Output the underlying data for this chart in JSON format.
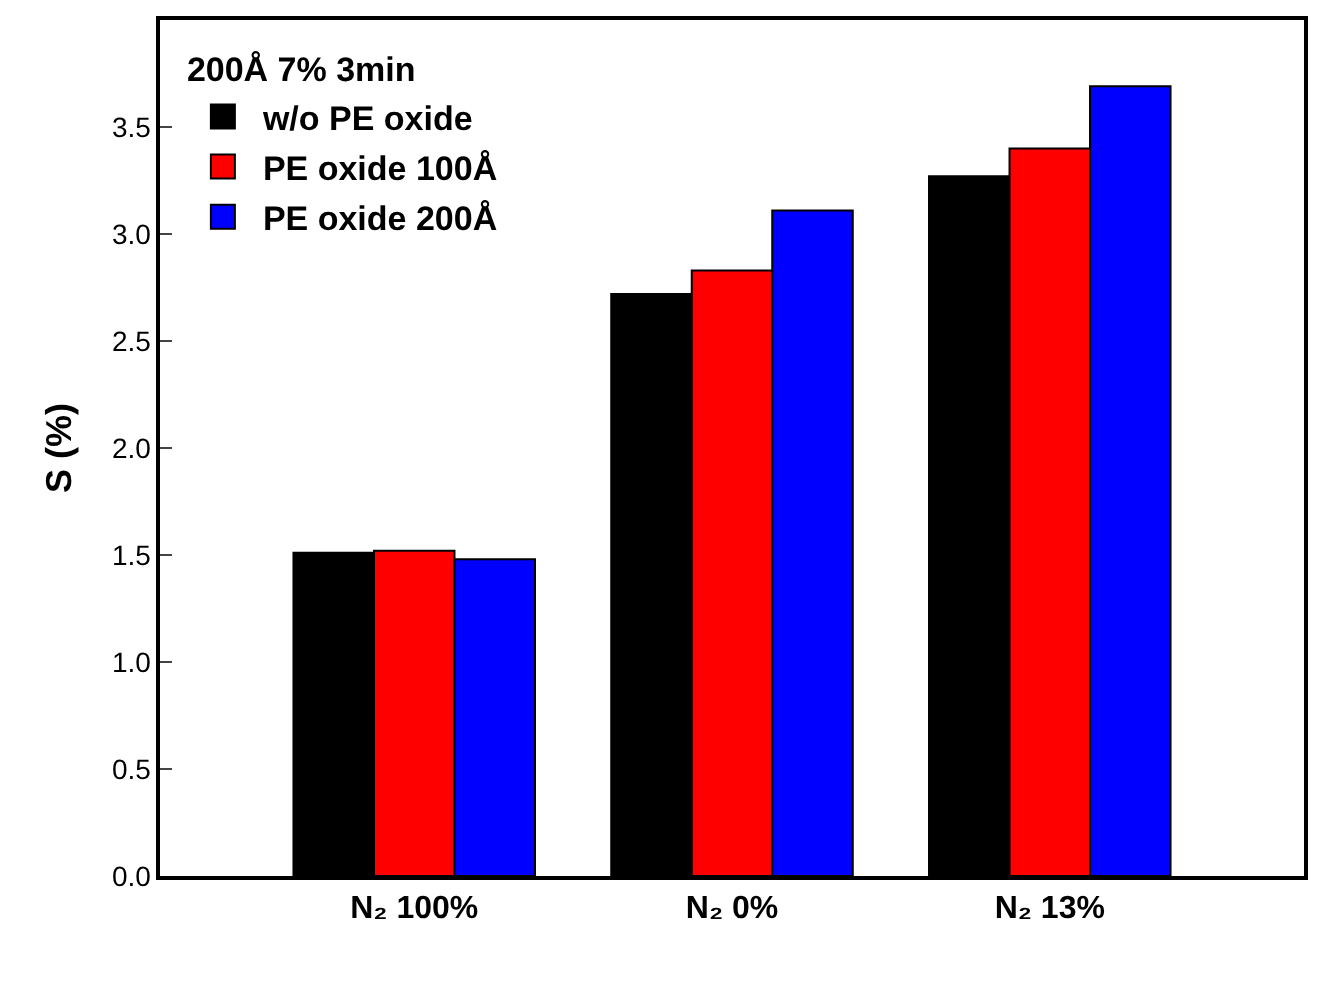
{
  "chart_data": {
    "type": "bar",
    "ylabel": "S (%)",
    "legend_title": "200Å 7% 3min",
    "categories": [
      "N₂ 100%",
      "N₂ 0%",
      "N₂ 13%"
    ],
    "series": [
      {
        "name": "w/o PE oxide",
        "color": "#000000",
        "values": [
          1.51,
          2.72,
          3.27
        ]
      },
      {
        "name": "PE oxide 100Å",
        "color": "#ff0000",
        "values": [
          1.52,
          2.83,
          3.4
        ]
      },
      {
        "name": "PE oxide 200Å",
        "color": "#0000ff",
        "values": [
          1.48,
          3.11,
          3.69
        ]
      }
    ],
    "ylim": [
      0,
      4.0
    ],
    "yticks": [
      {
        "value": 0,
        "label": "0.0"
      },
      {
        "value": 0.5,
        "label": "0.5"
      },
      {
        "value": 1,
        "label": "1.0"
      },
      {
        "value": 1.5,
        "label": "1.5"
      },
      {
        "value": 2,
        "label": "2.0"
      },
      {
        "value": 2.5,
        "label": "2.5"
      },
      {
        "value": 3,
        "label": "3.0"
      },
      {
        "value": 3.5,
        "label": "3.5"
      }
    ],
    "grid": false,
    "legend": "top left"
  }
}
